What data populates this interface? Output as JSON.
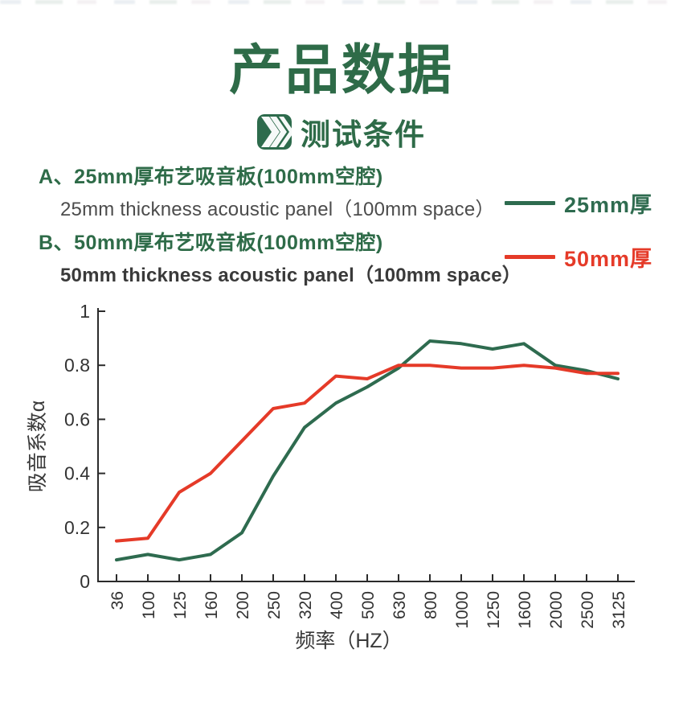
{
  "colors": {
    "brand_green": "#2e6b48",
    "line_green": "#2e6b4f",
    "line_red": "#e53a28",
    "axis": "#2b2b2b",
    "tick_text": "#333333"
  },
  "header": {
    "title": "产品数据",
    "subtitle": "测试条件"
  },
  "items": [
    {
      "prefix": "A、",
      "title_cn": "25mm厚布艺吸音板(100mm空腔)",
      "subtitle_en": "25mm thickness acoustic panel（100mm space）"
    },
    {
      "prefix": "B、",
      "title_cn": "50mm厚布艺吸音板(100mm空腔)",
      "subtitle_en": "50mm thickness acoustic panel（100mm space）"
    }
  ],
  "legend": [
    {
      "label": "25mm厚",
      "color": "#2e6b4f"
    },
    {
      "label": "50mm厚",
      "color": "#e53a28"
    }
  ],
  "chart_data": {
    "type": "line",
    "title": "",
    "xlabel": "频率（HZ）",
    "ylabel": "吸音系数α",
    "categories": [
      "36",
      "100",
      "125",
      "160",
      "200",
      "250",
      "320",
      "400",
      "500",
      "630",
      "800",
      "1000",
      "1250",
      "1600",
      "2000",
      "2500",
      "3125"
    ],
    "y_ticks": [
      "0",
      "0.2",
      "0.4",
      "0.6",
      "0.8",
      "1"
    ],
    "ylim": [
      0,
      1
    ],
    "grid": false,
    "legend_position": "top-right",
    "series": [
      {
        "name": "25mm厚",
        "color": "#2e6b4f",
        "values": [
          0.08,
          0.1,
          0.08,
          0.1,
          0.18,
          0.39,
          0.57,
          0.66,
          0.72,
          0.79,
          0.89,
          0.88,
          0.86,
          0.88,
          0.8,
          0.78,
          0.75
        ]
      },
      {
        "name": "50mm厚",
        "color": "#e53a28",
        "values": [
          0.15,
          0.16,
          0.33,
          0.4,
          0.52,
          0.64,
          0.66,
          0.76,
          0.75,
          0.8,
          0.8,
          0.79,
          0.79,
          0.8,
          0.79,
          0.77,
          0.77
        ]
      }
    ]
  }
}
